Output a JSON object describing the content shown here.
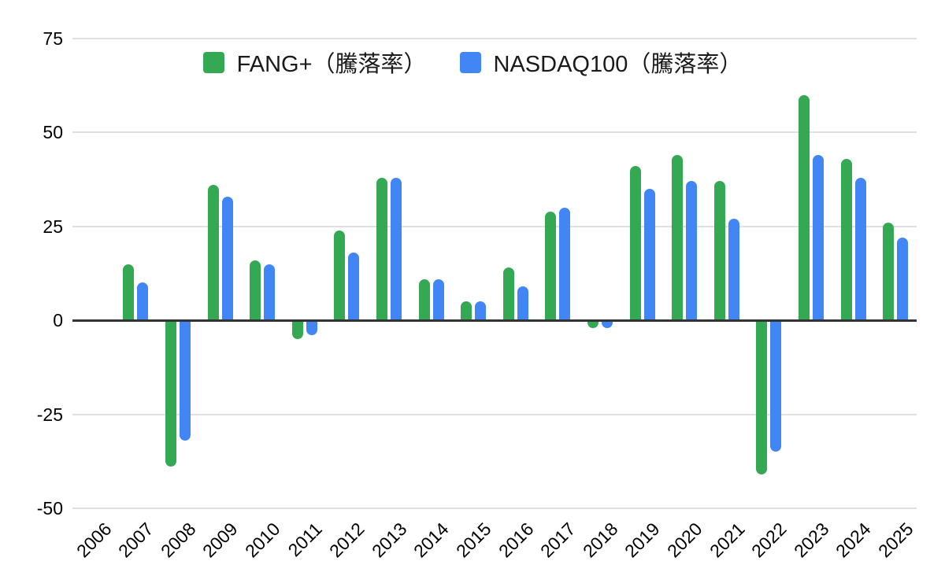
{
  "chart_data": {
    "type": "bar",
    "title": "",
    "categories": [
      "2006",
      "2007",
      "2008",
      "2009",
      "2010",
      "2011",
      "2012",
      "2013",
      "2014",
      "2015",
      "2016",
      "2017",
      "2018",
      "2019",
      "2020",
      "2021",
      "2022",
      "2023",
      "2024",
      "2025"
    ],
    "series": [
      {
        "name": "FANG+（騰落率）",
        "key": "fang-plus",
        "color": "#34a853",
        "values": [
          0,
          15,
          -39,
          36,
          16,
          -5,
          24,
          38,
          11,
          5,
          14,
          29,
          -2,
          41,
          44,
          37,
          -41,
          60,
          43,
          26
        ]
      },
      {
        "name": "NASDAQ100（騰落率）",
        "key": "nasdaq100",
        "color": "#4285f4",
        "values": [
          0,
          10,
          -32,
          33,
          15,
          -4,
          18,
          38,
          11,
          5,
          9,
          30,
          -2,
          35,
          37,
          27,
          -35,
          44,
          38,
          22
        ]
      }
    ],
    "xlabel": "",
    "ylabel": "",
    "ylim": [
      -50,
      75
    ],
    "y_ticks": [
      75,
      50,
      25,
      0,
      -25,
      -50
    ],
    "grid": true,
    "legend_position": "top-center",
    "style": {
      "background": "#ffffff",
      "gridline_color": "#e0e0e0",
      "zero_line_color": "#333333",
      "label_color": "#000000"
    }
  }
}
